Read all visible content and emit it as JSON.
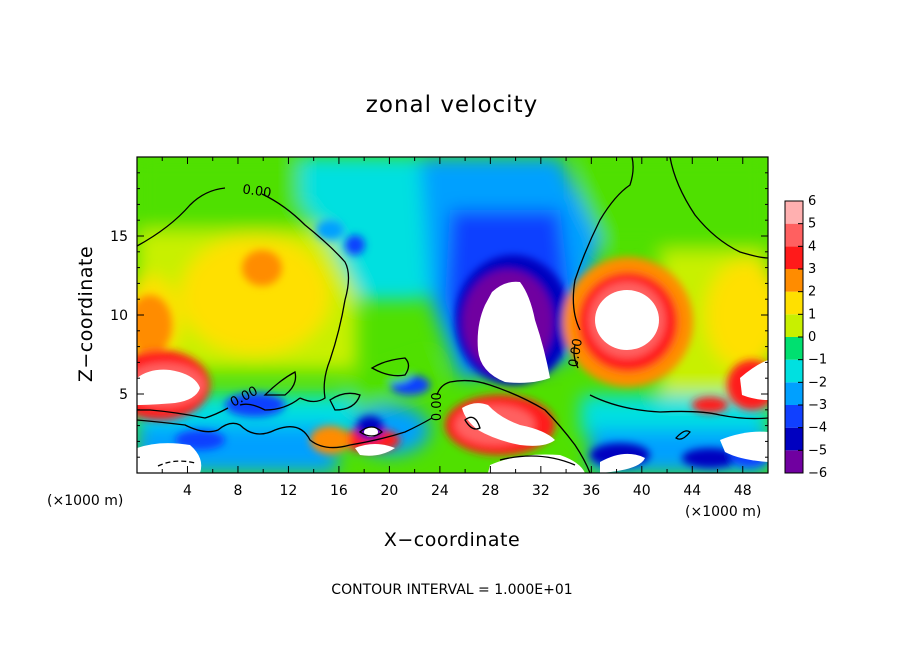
{
  "chart_data": {
    "type": "heatmap",
    "title": "zonal velocity",
    "xlabel": "X−coordinate",
    "ylabel": "Z−coordinate",
    "x_unit_label": "(×1000 m)",
    "z_unit_label": "(×1000 m)",
    "xlim": [
      0,
      50
    ],
    "ylim": [
      0,
      20
    ],
    "x_ticks": [
      4,
      8,
      12,
      16,
      20,
      24,
      28,
      32,
      36,
      40,
      44,
      48
    ],
    "y_ticks": [
      5,
      10,
      15
    ],
    "x_tick_labels": [
      "4",
      "8",
      "12",
      "16",
      "20",
      "24",
      "28",
      "32",
      "36",
      "40",
      "44",
      "48"
    ],
    "y_tick_labels": [
      "5",
      "10",
      "15"
    ],
    "colorbar": {
      "min": -6,
      "max": 6,
      "ticks": [
        6,
        5,
        4,
        3,
        2,
        1,
        0,
        -1,
        -2,
        -3,
        -4,
        -5,
        -6
      ],
      "tick_labels": [
        "6",
        "5",
        "4",
        "3",
        "2",
        "1",
        "0",
        "−1",
        "−2",
        "−3",
        "−4",
        "−5",
        "−6"
      ],
      "colors": {
        "6": "#ffb0b0",
        "5": "#ff6060",
        "4": "#ff1a1a",
        "3": "#ff8c00",
        "2": "#ffe000",
        "1": "#c8f000",
        "0": "#50e000",
        "-1": "#00e070",
        "-2": "#00e0e0",
        "-3": "#00a0ff",
        "-4": "#1040ff",
        "-5": "#0000c0",
        "-6": "#7000a0"
      },
      "out_of_range_color": "#ffffff"
    },
    "contour_labels": [
      {
        "text": "0.00",
        "x": 9.5,
        "z": 17.8,
        "angle": 8
      },
      {
        "text": "0.00",
        "x": 8.5,
        "z": 4.8,
        "angle": -28
      },
      {
        "text": "0.00",
        "x": 23.8,
        "z": 4.2,
        "angle": -90
      },
      {
        "text": "0.00",
        "x": 34.8,
        "z": 7.6,
        "angle": -80
      }
    ],
    "grid": false,
    "footer": "CONTOUR INTERVAL = 1.000E+01"
  }
}
